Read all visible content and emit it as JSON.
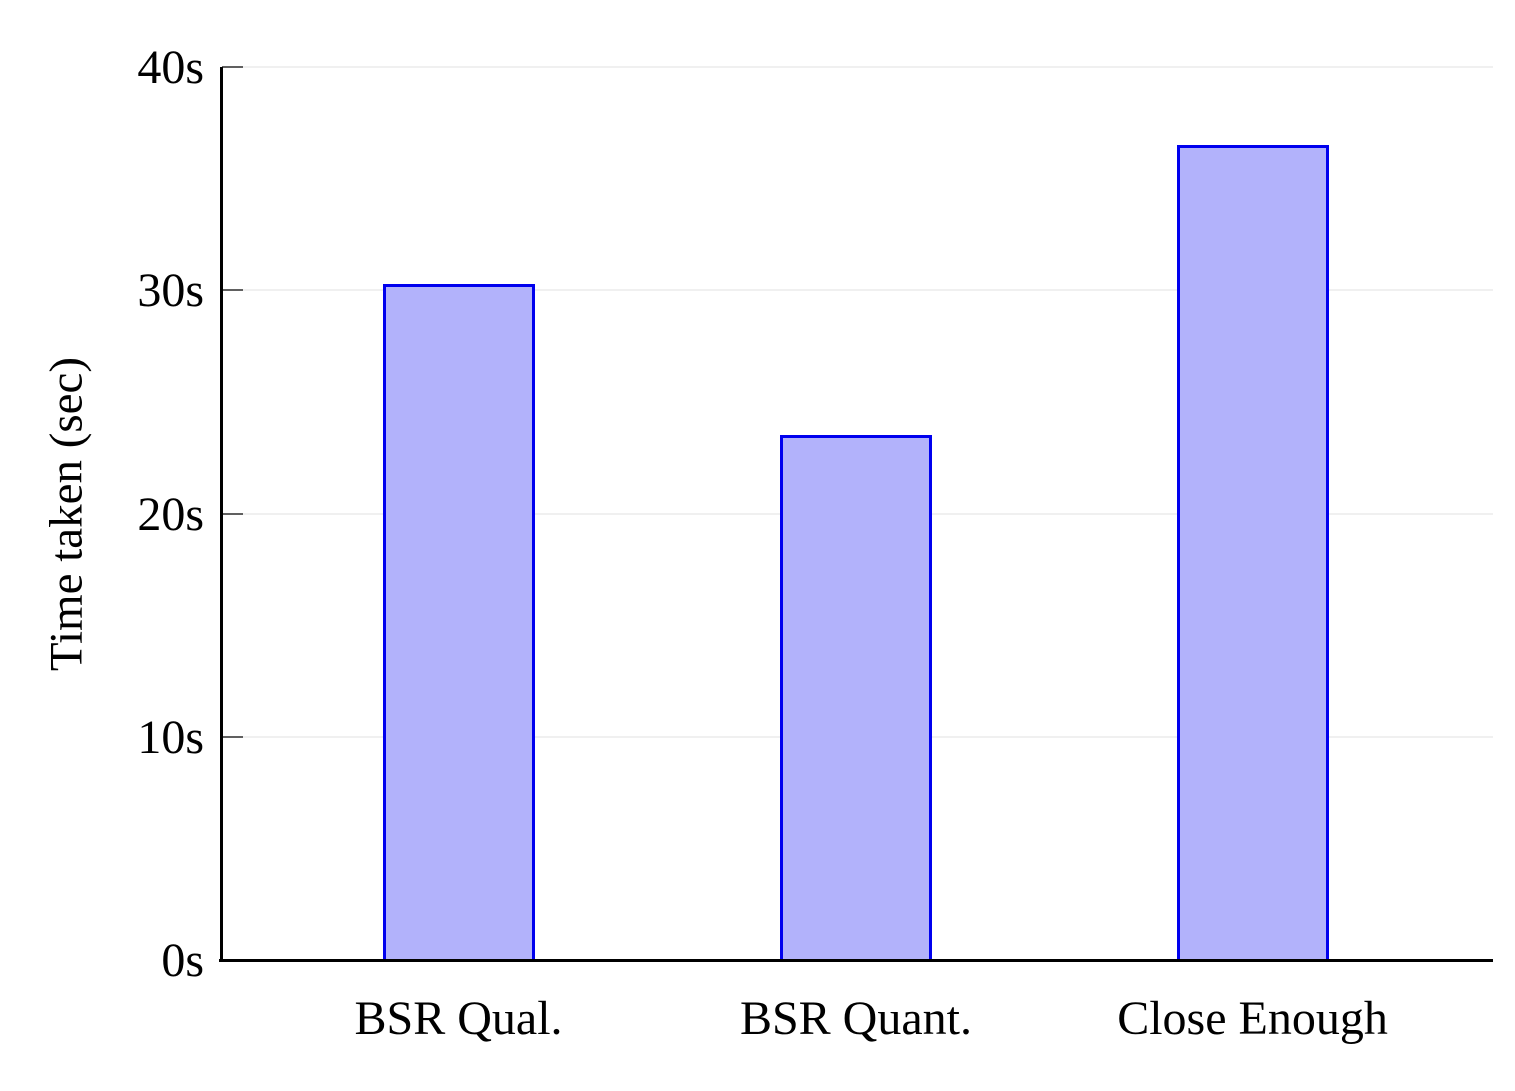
{
  "chart_data": {
    "type": "bar",
    "categories": [
      "BSR Qual.",
      "BSR Quant.",
      "Close Enough"
    ],
    "values": [
      30.3,
      23.5,
      36.5
    ],
    "title": "",
    "xlabel": "",
    "ylabel": "Time taken (sec)",
    "ylim": [
      0,
      40
    ],
    "ytick_values": [
      0,
      10,
      20,
      30,
      40
    ],
    "ytick_labels": [
      "0s",
      "10s",
      "20s",
      "30s",
      "40s"
    ],
    "grid": "horizontal-major",
    "legend": "none",
    "colors": {
      "bar_fill": "#b2b2fb",
      "bar_border": "#0000ee",
      "axis": "#000000",
      "tick": "#606060",
      "gridline": "#f0f0f0",
      "text": "#000000",
      "background": "#ffffff"
    }
  }
}
